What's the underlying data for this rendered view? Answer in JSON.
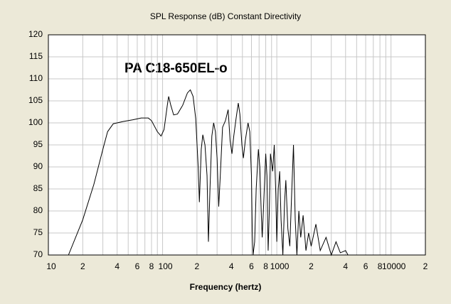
{
  "chart_data": {
    "type": "line",
    "title": "SPL Response (dB)   Constant Directivity",
    "annotation": "PA C18-650EL-o",
    "xlabel": "Frequency (hertz)",
    "xscale": "log",
    "grid": true,
    "xlim": [
      10,
      20000
    ],
    "ylim": [
      70,
      120
    ],
    "yticks": [
      70,
      75,
      80,
      85,
      90,
      95,
      100,
      105,
      110,
      115,
      120
    ],
    "xticks": [
      10,
      {
        "value": 20,
        "label": "2"
      },
      {
        "value": 40,
        "label": "4"
      },
      {
        "value": 60,
        "label": "6"
      },
      {
        "value": 80,
        "label": "8"
      },
      100,
      {
        "value": 200,
        "label": "2"
      },
      {
        "value": 400,
        "label": "4"
      },
      {
        "value": 600,
        "label": "6"
      },
      {
        "value": 800,
        "label": "8"
      },
      1000,
      {
        "value": 2000,
        "label": "2"
      },
      {
        "value": 4000,
        "label": "4"
      },
      {
        "value": 6000,
        "label": "6"
      },
      {
        "value": 8000,
        "label": "8"
      },
      10000,
      {
        "value": 20000,
        "label": "2"
      }
    ],
    "xgrid": [
      30,
      50,
      70,
      90,
      300,
      500,
      700,
      900,
      3000,
      5000,
      7000,
      9000
    ],
    "series": [
      {
        "color": "#000000",
        "x": [
          15,
          20,
          25,
          30,
          33,
          37,
          45,
          55,
          65,
          75,
          80,
          90,
          97,
          103,
          110,
          113,
          118,
          125,
          135,
          150,
          165,
          175,
          185,
          195,
          205,
          210,
          218,
          225,
          235,
          245,
          252,
          260,
          270,
          280,
          290,
          300,
          310,
          320,
          335,
          355,
          375,
          390,
          405,
          420,
          440,
          460,
          475,
          495,
          510,
          530,
          560,
          580,
          600,
          610,
          620,
          640,
          660,
          690,
          710,
          730,
          745,
          760,
          780,
          800,
          820,
          840,
          860,
          880,
          900,
          920,
          950,
          980,
          1000,
          1030,
          1060,
          1090,
          1130,
          1170,
          1200,
          1250,
          1300,
          1350,
          1400,
          1450,
          1500,
          1560,
          1620,
          1700,
          1800,
          1900,
          2000,
          2200,
          2400,
          2700,
          3000,
          3300,
          3600,
          4000,
          4200
        ],
        "values": [
          70,
          78,
          86,
          94,
          98,
          99.8,
          100.3,
          100.7,
          101.1,
          101.1,
          100.5,
          98,
          97,
          98.5,
          104,
          106,
          104,
          101.8,
          102,
          104,
          106.8,
          107.5,
          106,
          101,
          90,
          82,
          94,
          97.3,
          95,
          88,
          73,
          85,
          97,
          100,
          98,
          92,
          81,
          88,
          99,
          100.5,
          103,
          96,
          93,
          97,
          101,
          104.5,
          102,
          95,
          92,
          96,
          100,
          98,
          88,
          75,
          70,
          73,
          85,
          94,
          90,
          80,
          74,
          79,
          86,
          93,
          88,
          71,
          80,
          93,
          91,
          89,
          95,
          84,
          73,
          85,
          89,
          78,
          70,
          82,
          87,
          76,
          72,
          84,
          95,
          78,
          70,
          80,
          74,
          79,
          71,
          75,
          72,
          77,
          71,
          74,
          70,
          73,
          70.5,
          71,
          70
        ]
      }
    ]
  }
}
